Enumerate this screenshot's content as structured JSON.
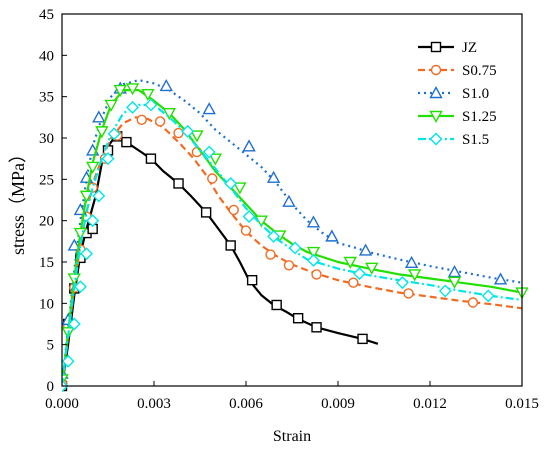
{
  "chart_data": {
    "type": "line",
    "title": "",
    "xlabel": "Strain",
    "ylabel": "stress（MPa）",
    "xlim": [
      0,
      0.015
    ],
    "ylim": [
      0,
      45
    ],
    "xticks": [
      "0.000",
      "0.003",
      "0.006",
      "0.009",
      "0.012",
      "0.015"
    ],
    "yticks": [
      "0",
      "5",
      "10",
      "15",
      "20",
      "25",
      "30",
      "35",
      "40",
      "45"
    ],
    "grid": false,
    "legend_position": "top-right",
    "series": [
      {
        "name": "JZ",
        "color": "#000000",
        "dash": "solid",
        "marker": "square",
        "line": [
          [
            0,
            0
          ],
          [
            0.0002,
            5
          ],
          [
            0.0004,
            11
          ],
          [
            0.0006,
            16
          ],
          [
            0.0008,
            19
          ],
          [
            0.0011,
            23
          ],
          [
            0.0013,
            27
          ],
          [
            0.0015,
            29
          ],
          [
            0.0018,
            30.5
          ],
          [
            0.0021,
            29.5
          ],
          [
            0.0025,
            28.5
          ],
          [
            0.0029,
            27.5
          ],
          [
            0.0033,
            26
          ],
          [
            0.0038,
            24.5
          ],
          [
            0.0042,
            23
          ],
          [
            0.0047,
            21
          ],
          [
            0.0051,
            19
          ],
          [
            0.0055,
            17
          ],
          [
            0.0058,
            15
          ],
          [
            0.0061,
            12.8
          ],
          [
            0.0065,
            11
          ],
          [
            0.0069,
            9.8
          ],
          [
            0.0073,
            9
          ],
          [
            0.0077,
            8.1
          ],
          [
            0.0083,
            7.1
          ],
          [
            0.009,
            6.4
          ],
          [
            0.0098,
            5.7
          ],
          [
            0.0103,
            5.1
          ]
        ],
        "markers": [
          [
            0,
            0
          ],
          [
            0.0002,
            7.5
          ],
          [
            0.0004,
            11.8
          ],
          [
            0.0006,
            15.5
          ],
          [
            0.0008,
            18.5
          ],
          [
            0.001,
            19
          ],
          [
            0.0015,
            28.5
          ],
          [
            0.0018,
            30.2
          ],
          [
            0.0021,
            29.5
          ],
          [
            0.0029,
            27.5
          ],
          [
            0.0038,
            24.5
          ],
          [
            0.0047,
            21
          ],
          [
            0.0055,
            17
          ],
          [
            0.0062,
            12.8
          ],
          [
            0.007,
            9.8
          ],
          [
            0.0077,
            8.2
          ],
          [
            0.0083,
            7.1
          ],
          [
            0.0098,
            5.7
          ]
        ]
      },
      {
        "name": "S0.75",
        "color": "#f26b22",
        "dash": "dash",
        "marker": "circle",
        "line": [
          [
            0,
            0
          ],
          [
            0.0002,
            6
          ],
          [
            0.0004,
            12
          ],
          [
            0.0006,
            17
          ],
          [
            0.0008,
            21
          ],
          [
            0.001,
            24.5
          ],
          [
            0.0013,
            27.5
          ],
          [
            0.0016,
            30
          ],
          [
            0.002,
            31.8
          ],
          [
            0.0024,
            32.5
          ],
          [
            0.0028,
            32.3
          ],
          [
            0.0033,
            31.3
          ],
          [
            0.0038,
            29.5
          ],
          [
            0.0043,
            27.5
          ],
          [
            0.0047,
            25.5
          ],
          [
            0.0051,
            23
          ],
          [
            0.0055,
            21
          ],
          [
            0.006,
            18.7
          ],
          [
            0.0065,
            17
          ],
          [
            0.007,
            15.7
          ],
          [
            0.0075,
            14.7
          ],
          [
            0.0082,
            13.7
          ],
          [
            0.009,
            12.8
          ],
          [
            0.01,
            12
          ],
          [
            0.011,
            11.3
          ],
          [
            0.012,
            10.8
          ],
          [
            0.013,
            10.3
          ],
          [
            0.014,
            9.9
          ],
          [
            0.015,
            9.4
          ]
        ],
        "markers": [
          [
            0,
            0.3
          ],
          [
            0.0002,
            7.2
          ],
          [
            0.0004,
            11.9
          ],
          [
            0.0006,
            16.5
          ],
          [
            0.0008,
            20.5
          ],
          [
            0.001,
            24
          ],
          [
            0.0014,
            27.5
          ],
          [
            0.0018,
            30.3
          ],
          [
            0.0026,
            32.2
          ],
          [
            0.0032,
            32
          ],
          [
            0.0038,
            30.6
          ],
          [
            0.0044,
            28.3
          ],
          [
            0.0049,
            25.1
          ],
          [
            0.0056,
            21.3
          ],
          [
            0.006,
            18.8
          ],
          [
            0.0068,
            15.9
          ],
          [
            0.0074,
            14.6
          ],
          [
            0.0083,
            13.5
          ],
          [
            0.0095,
            12.5
          ],
          [
            0.0113,
            11.2
          ],
          [
            0.0134,
            10.1
          ]
        ]
      },
      {
        "name": "S1.0",
        "color": "#1f6fd1",
        "dash": "dot",
        "marker": "triangle",
        "line": [
          [
            0,
            0
          ],
          [
            0.0002,
            7
          ],
          [
            0.0004,
            14
          ],
          [
            0.0006,
            20
          ],
          [
            0.0008,
            25
          ],
          [
            0.001,
            29
          ],
          [
            0.0013,
            32.5
          ],
          [
            0.0016,
            35
          ],
          [
            0.002,
            36.5
          ],
          [
            0.0025,
            37
          ],
          [
            0.003,
            36.6
          ],
          [
            0.0035,
            35.8
          ],
          [
            0.004,
            34.5
          ],
          [
            0.0045,
            33
          ],
          [
            0.005,
            31
          ],
          [
            0.0055,
            29.5
          ],
          [
            0.006,
            28
          ],
          [
            0.0065,
            26.5
          ],
          [
            0.007,
            24.5
          ],
          [
            0.0075,
            22
          ],
          [
            0.008,
            20
          ],
          [
            0.0085,
            18.5
          ],
          [
            0.009,
            17.3
          ],
          [
            0.0095,
            16.8
          ],
          [
            0.01,
            16.2
          ],
          [
            0.011,
            15.3
          ],
          [
            0.012,
            14.5
          ],
          [
            0.013,
            13.8
          ],
          [
            0.014,
            13.1
          ],
          [
            0.015,
            12.5
          ]
        ],
        "markers": [
          [
            0,
            1.5
          ],
          [
            0.0002,
            8
          ],
          [
            0.0004,
            17
          ],
          [
            0.0006,
            21.3
          ],
          [
            0.0008,
            25.2
          ],
          [
            0.001,
            28.5
          ],
          [
            0.0012,
            32.5
          ],
          [
            0.0019,
            36
          ],
          [
            0.0034,
            36.3
          ],
          [
            0.0048,
            33.5
          ],
          [
            0.0061,
            29
          ],
          [
            0.0069,
            25.2
          ],
          [
            0.0074,
            22.3
          ],
          [
            0.0082,
            19.8
          ],
          [
            0.0088,
            18.1
          ],
          [
            0.0099,
            16.4
          ],
          [
            0.0114,
            14.9
          ],
          [
            0.0128,
            13.8
          ],
          [
            0.0143,
            12.9
          ]
        ]
      },
      {
        "name": "S1.25",
        "color": "#22e000",
        "dash": "solid",
        "marker": "triangle-down",
        "line": [
          [
            0,
            0
          ],
          [
            0.0002,
            6.5
          ],
          [
            0.0004,
            13
          ],
          [
            0.0006,
            18.5
          ],
          [
            0.0008,
            23
          ],
          [
            0.001,
            27
          ],
          [
            0.0013,
            31
          ],
          [
            0.0016,
            34
          ],
          [
            0.002,
            35.8
          ],
          [
            0.0025,
            35.8
          ],
          [
            0.003,
            34.5
          ],
          [
            0.0035,
            33
          ],
          [
            0.004,
            31
          ],
          [
            0.0045,
            28.5
          ],
          [
            0.005,
            26
          ],
          [
            0.0055,
            24
          ],
          [
            0.006,
            22
          ],
          [
            0.0065,
            20
          ],
          [
            0.007,
            18.5
          ],
          [
            0.0075,
            17.2
          ],
          [
            0.008,
            16.2
          ],
          [
            0.009,
            15
          ],
          [
            0.01,
            14.2
          ],
          [
            0.011,
            13.5
          ],
          [
            0.012,
            13
          ],
          [
            0.013,
            12.5
          ],
          [
            0.014,
            12
          ],
          [
            0.015,
            11.3
          ]
        ],
        "markers": [
          [
            0,
            0.8
          ],
          [
            0.0002,
            6.5
          ],
          [
            0.0004,
            13
          ],
          [
            0.0006,
            18.5
          ],
          [
            0.0008,
            23
          ],
          [
            0.001,
            26.5
          ],
          [
            0.0013,
            30.8
          ],
          [
            0.0016,
            34
          ],
          [
            0.0019,
            35.8
          ],
          [
            0.0023,
            36
          ],
          [
            0.0028,
            35.3
          ],
          [
            0.0035,
            33
          ],
          [
            0.0044,
            30.3
          ],
          [
            0.005,
            27.5
          ],
          [
            0.0058,
            24
          ],
          [
            0.0065,
            20
          ],
          [
            0.0071,
            18.2
          ],
          [
            0.0082,
            16.2
          ],
          [
            0.0094,
            15
          ],
          [
            0.0101,
            14.3
          ],
          [
            0.0115,
            13.5
          ],
          [
            0.0128,
            12.6
          ],
          [
            0.015,
            11.3
          ]
        ]
      },
      {
        "name": "S1.5",
        "color": "#00e6e6",
        "dash": "dashdot",
        "marker": "diamond",
        "line": [
          [
            0,
            0
          ],
          [
            0.0002,
            6
          ],
          [
            0.0004,
            12
          ],
          [
            0.0006,
            17
          ],
          [
            0.0008,
            21
          ],
          [
            0.001,
            24
          ],
          [
            0.0013,
            27.5
          ],
          [
            0.0016,
            30.5
          ],
          [
            0.002,
            33
          ],
          [
            0.0025,
            34
          ],
          [
            0.003,
            34
          ],
          [
            0.0035,
            32.5
          ],
          [
            0.004,
            30.8
          ],
          [
            0.0045,
            28.5
          ],
          [
            0.005,
            26.3
          ],
          [
            0.0055,
            24
          ],
          [
            0.006,
            21.5
          ],
          [
            0.0065,
            19.5
          ],
          [
            0.007,
            17.8
          ],
          [
            0.0075,
            16.5
          ],
          [
            0.008,
            15.3
          ],
          [
            0.009,
            14.2
          ],
          [
            0.01,
            13.4
          ],
          [
            0.011,
            12.8
          ],
          [
            0.012,
            12.2
          ],
          [
            0.013,
            11.5
          ],
          [
            0.014,
            10.9
          ],
          [
            0.015,
            10.4
          ]
        ],
        "markers": [
          [
            0,
            0
          ],
          [
            0.0002,
            3
          ],
          [
            0.0004,
            7.5
          ],
          [
            0.0006,
            12
          ],
          [
            0.0008,
            16
          ],
          [
            0.001,
            20
          ],
          [
            0.0012,
            23
          ],
          [
            0.0015,
            27.5
          ],
          [
            0.0017,
            30.5
          ],
          [
            0.0023,
            33.7
          ],
          [
            0.0029,
            34
          ],
          [
            0.0041,
            30.8
          ],
          [
            0.0048,
            28.3
          ],
          [
            0.0055,
            24.5
          ],
          [
            0.0061,
            20.5
          ],
          [
            0.0069,
            18.1
          ],
          [
            0.0076,
            16.7
          ],
          [
            0.0082,
            15.2
          ],
          [
            0.0097,
            13.6
          ],
          [
            0.0111,
            12.5
          ],
          [
            0.0125,
            11.5
          ],
          [
            0.0139,
            10.9
          ]
        ]
      }
    ]
  }
}
